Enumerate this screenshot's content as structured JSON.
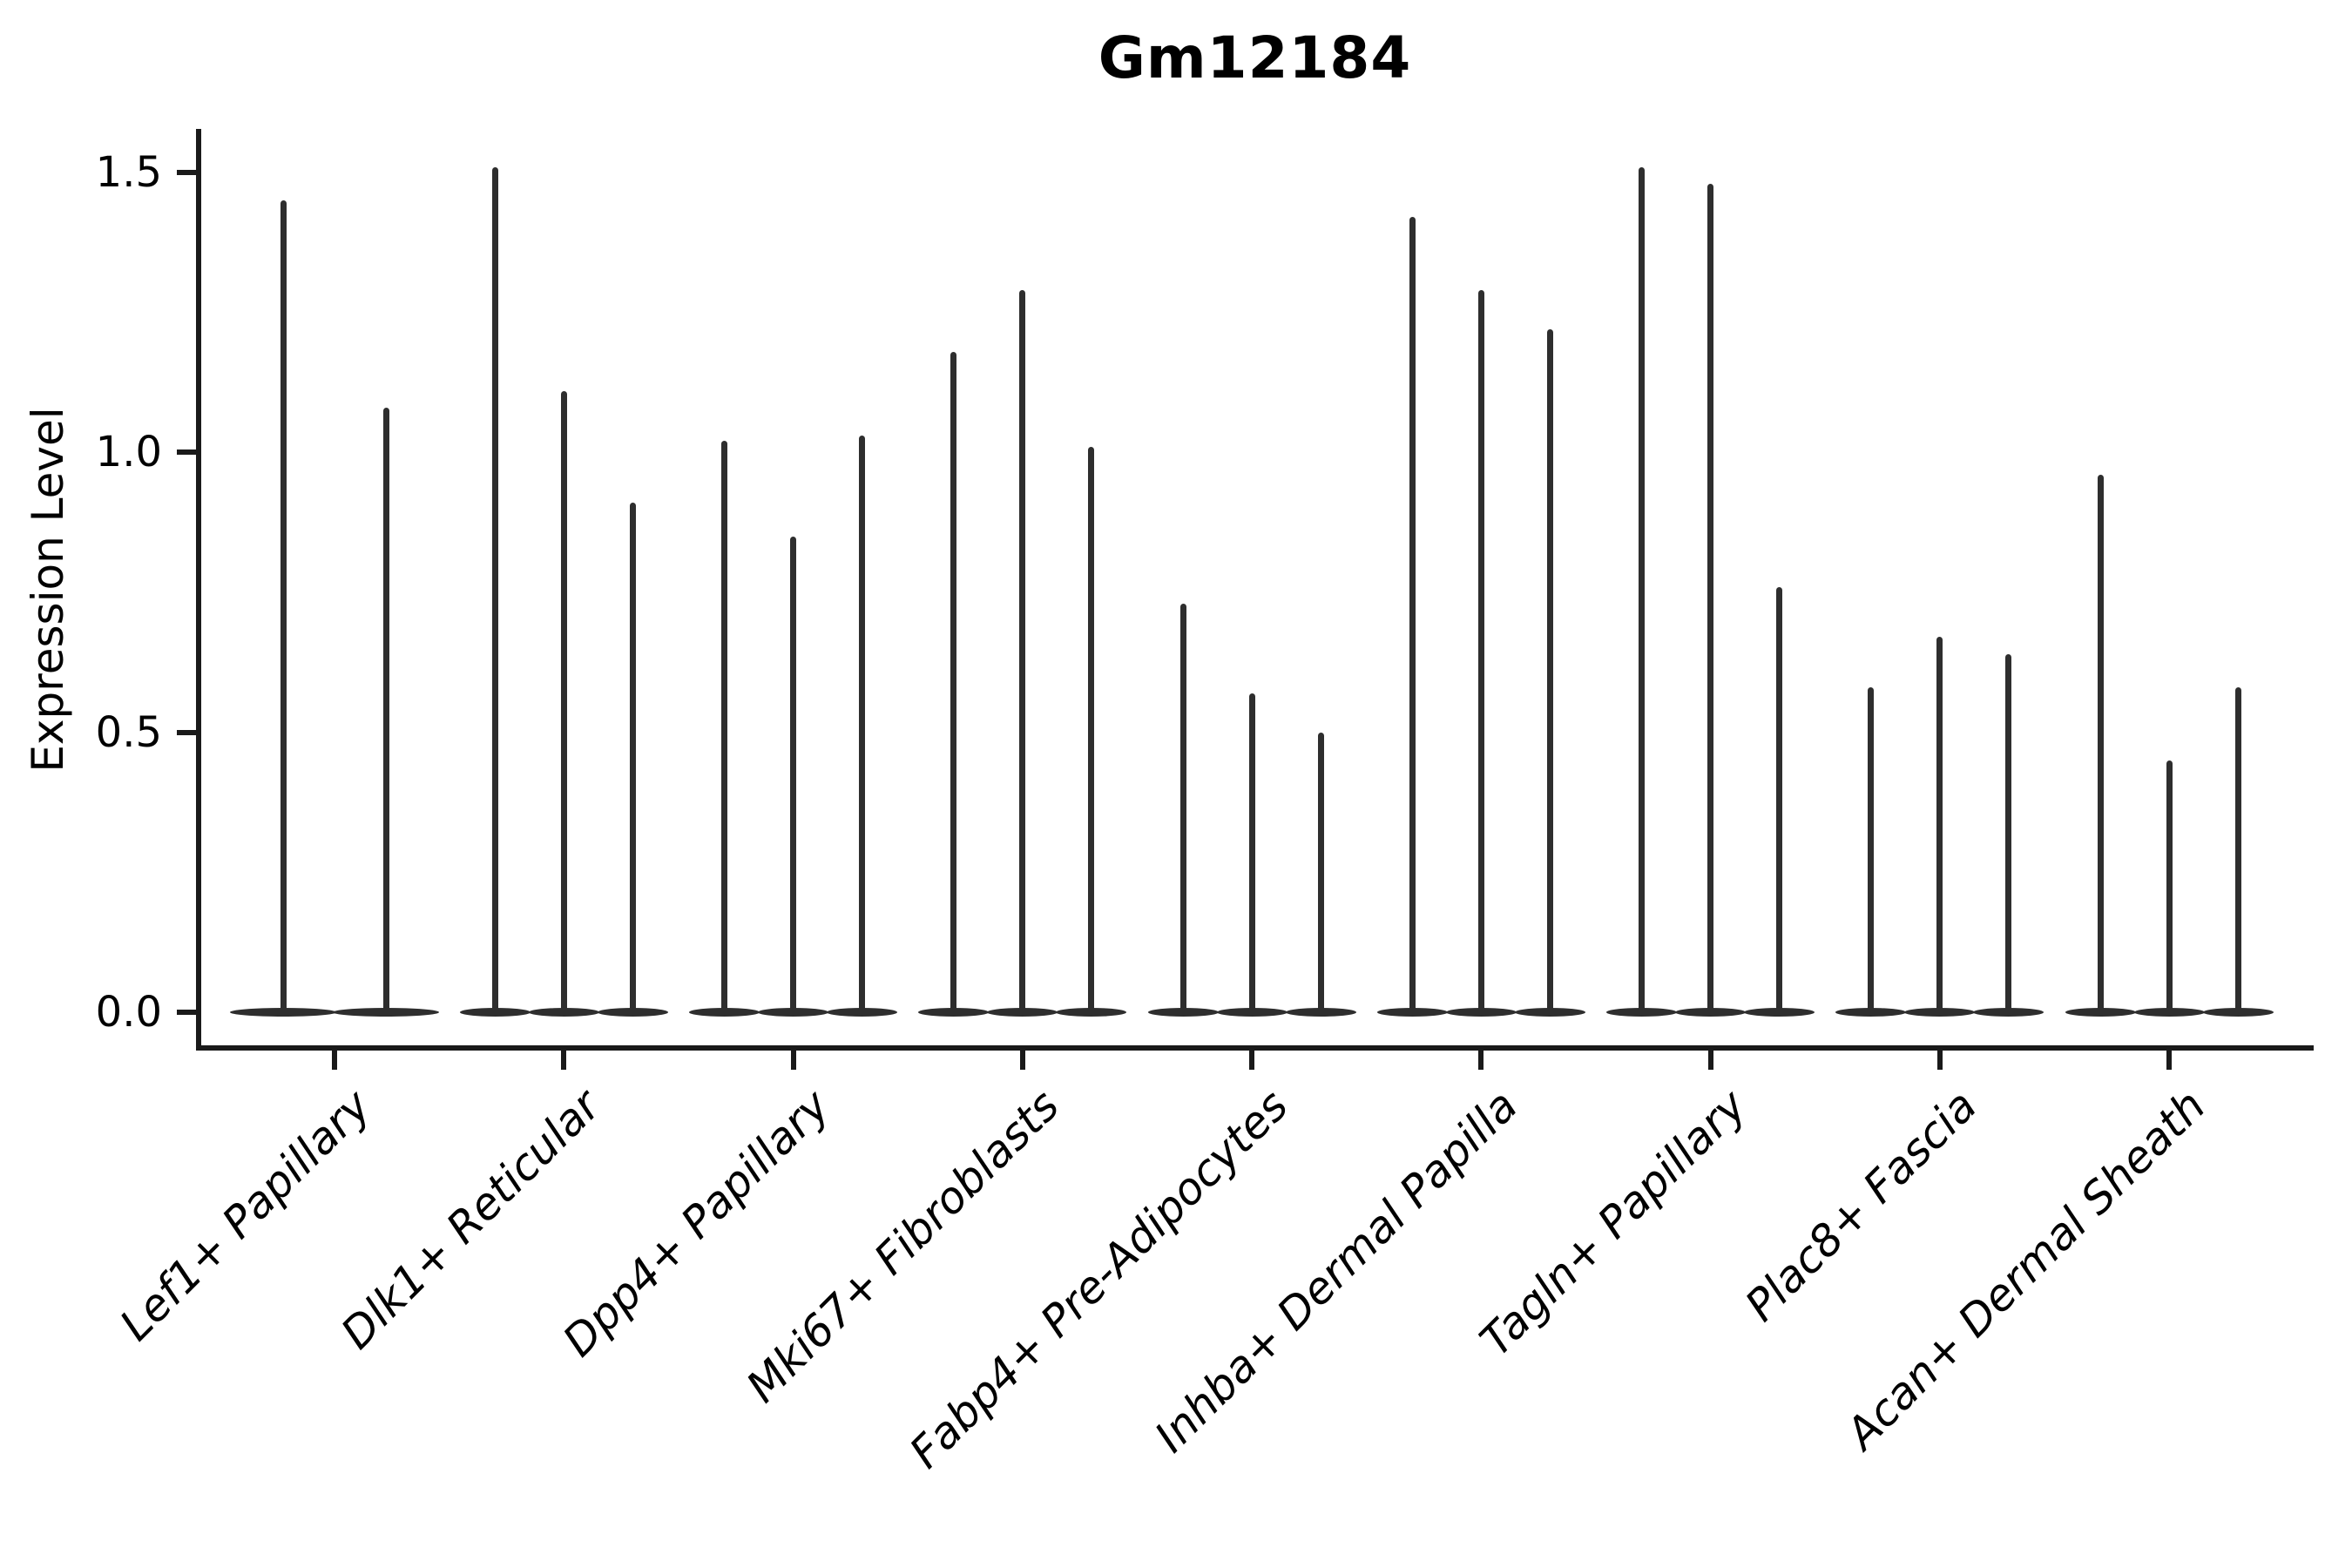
{
  "title": "Gm12184",
  "y_axis": {
    "label": "Expression Level",
    "tick_labels": [
      "0.0",
      "0.5",
      "1.0",
      "1.5"
    ],
    "tick_values": [
      0.0,
      0.5,
      1.0,
      1.5
    ]
  },
  "colors": {
    "violin": "#2e2e2e",
    "axis": "#1a1a1a",
    "text": "#000000",
    "background": "#ffffff"
  },
  "chart_data": {
    "type": "violin",
    "title": "Gm12184",
    "xlabel": "",
    "ylabel": "Expression Level",
    "ylim": [
      -0.06,
      1.58
    ],
    "yticks": [
      0.0,
      0.5,
      1.0,
      1.5
    ],
    "ytick_labels": [
      "0.0",
      "0.5",
      "1.0",
      "1.5"
    ],
    "grid": false,
    "legend": "none",
    "categories": [
      "Lef1+ Papillary",
      "Dlk1+ Reticular",
      "Dpp4+ Papillary",
      "Mki67+ Fibroblasts",
      "Fabp4+ Pre-Adipocytes",
      "Inhba+ Dermal Papilla",
      "Tagln+ Papillary",
      "Plac8+ Fascia",
      "Acan+ Dermal Sheath"
    ],
    "series": [
      {
        "category": "Lef1+ Papillary",
        "violin_max_expression": [
          1.45,
          1.08
        ]
      },
      {
        "category": "Dlk1+ Reticular",
        "violin_max_expression": [
          1.51,
          1.11,
          0.91
        ]
      },
      {
        "category": "Dpp4+ Papillary",
        "violin_max_expression": [
          1.02,
          0.85,
          1.03
        ]
      },
      {
        "category": "Mki67+ Fibroblasts",
        "violin_max_expression": [
          1.18,
          1.29,
          1.01
        ]
      },
      {
        "category": "Fabp4+ Pre-Adipocytes",
        "violin_max_expression": [
          0.73,
          0.57,
          0.5
        ]
      },
      {
        "category": "Inhba+ Dermal Papilla",
        "violin_max_expression": [
          1.42,
          1.29,
          1.22
        ]
      },
      {
        "category": "Tagln+ Papillary",
        "violin_max_expression": [
          1.51,
          1.48,
          0.76
        ]
      },
      {
        "category": "Plac8+ Fascia",
        "violin_max_expression": [
          0.58,
          0.67,
          0.64
        ]
      },
      {
        "category": "Acan+ Dermal Sheath",
        "violin_max_expression": [
          0.96,
          0.45,
          0.58
        ]
      }
    ],
    "shape_note": "Each violin is a flat dense mass at expression 0 with a single thin spike reaching its max expression value."
  }
}
